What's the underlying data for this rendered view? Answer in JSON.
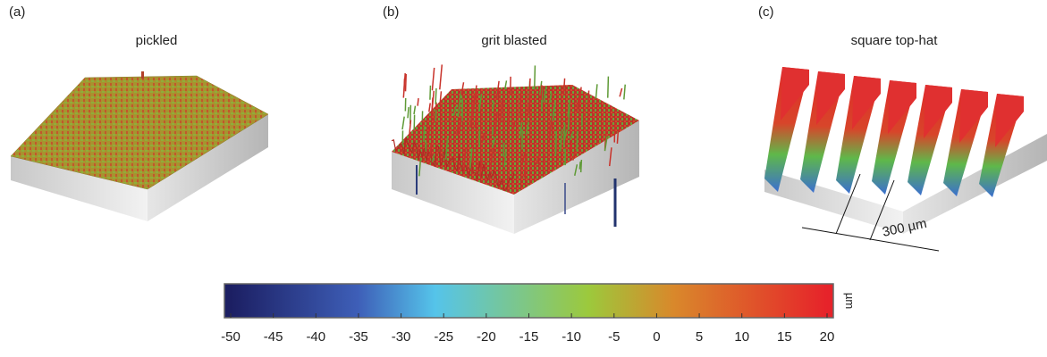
{
  "panels": [
    {
      "label": "(a)",
      "title": "pickled"
    },
    {
      "label": "(b)",
      "title": "grit blasted"
    },
    {
      "label": "(c)",
      "title": "square top-hat"
    }
  ],
  "annotation": "300 µm",
  "colorbar": {
    "unit": "µm",
    "lim": [
      -50,
      20
    ],
    "ticks": [
      -50,
      -45,
      -40,
      -35,
      -30,
      -25,
      -20,
      -15,
      -10,
      -5,
      0,
      5,
      10,
      15,
      20
    ],
    "stops": [
      {
        "value": -50,
        "color": "#1c1f63"
      },
      {
        "value": -35,
        "color": "#3e5fb8"
      },
      {
        "value": -26,
        "color": "#55c4ea"
      },
      {
        "value": -8,
        "color": "#9cc93c"
      },
      {
        "value": 2,
        "color": "#d9882b"
      },
      {
        "value": 20,
        "color": "#e6232a"
      }
    ]
  }
}
